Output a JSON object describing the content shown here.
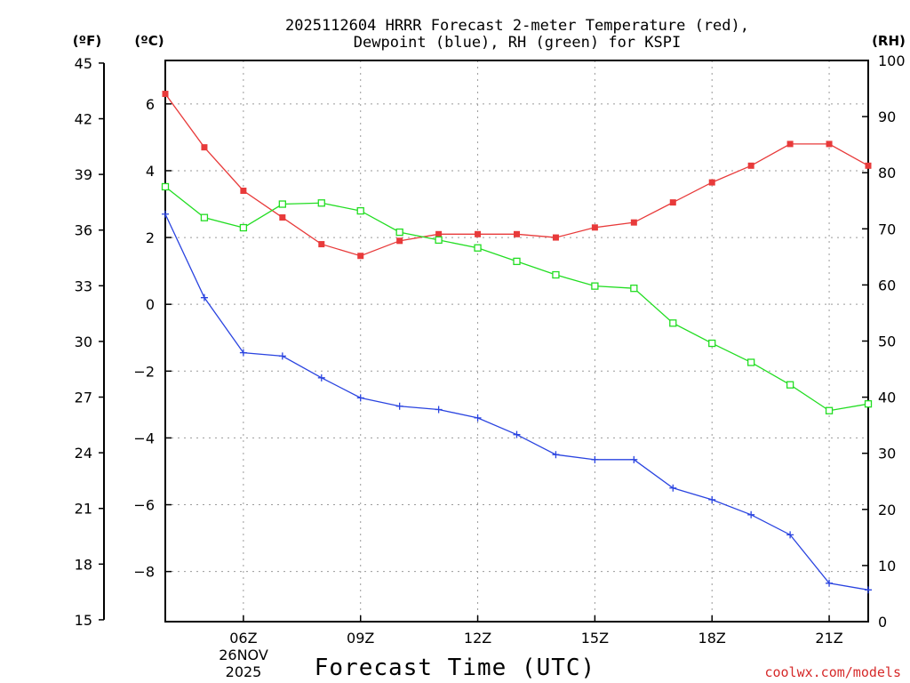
{
  "chart_data": {
    "type": "line",
    "title_line1": "2025112604 HRRR Forecast 2-meter Temperature (red),",
    "title_line2": "Dewpoint (blue), RH (green) for KSPI",
    "xlabel": "Forecast Time (UTC)",
    "date_line1": "26NOV",
    "date_line2": "2025",
    "credit": "coolwx.com/models",
    "unit_left_f": "(ºF)",
    "unit_left_c": "(ºC)",
    "unit_right": "(RH)",
    "x_hours": [
      4,
      5,
      6,
      7,
      8,
      9,
      10,
      11,
      12,
      13,
      14,
      15,
      16,
      17,
      18,
      19,
      20,
      21,
      22
    ],
    "xlim": [
      4,
      22
    ],
    "x_ticks": [
      {
        "hour": 6,
        "label": "06Z"
      },
      {
        "hour": 9,
        "label": "09Z"
      },
      {
        "hour": 12,
        "label": "12Z"
      },
      {
        "hour": 15,
        "label": "15Z"
      },
      {
        "hour": 18,
        "label": "18Z"
      },
      {
        "hour": 21,
        "label": "21Z"
      }
    ],
    "ylim_c": [
      -9.5,
      7.3
    ],
    "c_ticks": [
      6,
      4,
      2,
      0,
      -2,
      -4,
      -6,
      -8
    ],
    "c_tick_labels": [
      "6",
      "4",
      "2",
      "0",
      "−2",
      "−4",
      "−6",
      "−8"
    ],
    "f_ticks": [
      45,
      42,
      39,
      36,
      33,
      30,
      27,
      24,
      21,
      18,
      15
    ],
    "rh_ticks": [
      100,
      90,
      80,
      70,
      60,
      50,
      40,
      30,
      20,
      10,
      0
    ],
    "series": [
      {
        "name": "Temperature",
        "unit": "C",
        "color": "#e83a3a",
        "marker": "filled-square",
        "values": [
          6.3,
          4.7,
          3.4,
          2.6,
          1.8,
          1.45,
          1.9,
          2.1,
          2.1,
          2.1,
          2.0,
          2.3,
          2.45,
          3.05,
          3.65,
          4.15,
          4.8,
          4.8,
          4.15
        ]
      },
      {
        "name": "Dewpoint",
        "unit": "C",
        "color": "#2a44e0",
        "marker": "plus",
        "values": [
          2.7,
          0.2,
          -1.45,
          -1.55,
          -2.2,
          -2.8,
          -3.05,
          -3.15,
          -3.4,
          -3.9,
          -4.5,
          -4.65,
          -4.65,
          -5.5,
          -5.85,
          -6.3,
          -6.9,
          -8.35,
          -8.55
        ]
      },
      {
        "name": "Relative Humidity",
        "unit": "%",
        "color": "#22dd22",
        "marker": "open-square",
        "values": [
          77.5,
          72,
          70.2,
          74.4,
          74.6,
          73.2,
          69.4,
          68,
          66.6,
          64.2,
          61.8,
          59.8,
          59.4,
          53.2,
          49.6,
          46.2,
          42.2,
          37.6,
          38.8
        ]
      }
    ]
  }
}
